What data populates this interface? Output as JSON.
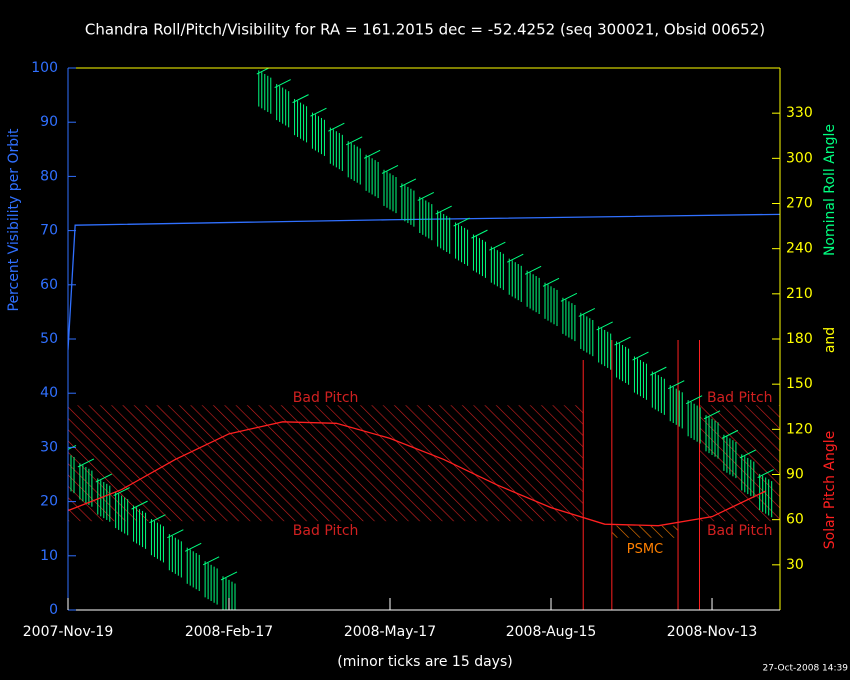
{
  "chart_data": {
    "type": "line",
    "title": "Chandra Roll/Pitch/Visibility for RA = 161.2015 dec = -52.4252 (seq 300021, Obsid 00652)",
    "ylabel": "Percent Visibility per Orbit",
    "y2label_parts": [
      {
        "text": "Nominal Roll Angle",
        "color": "#00ff80"
      },
      {
        "text": "and",
        "color": "#ffff00"
      },
      {
        "text": "Solar Pitch Angle",
        "color": "#ff2020"
      }
    ],
    "xlabel": "(minor ticks are 15 days)",
    "timestamp": "27-Oct-2008 14:39",
    "xlim": [
      "2007-11-19",
      "2008-12-21"
    ],
    "xticks": [
      {
        "value": "2007-11-19",
        "label": "2007-Nov-19"
      },
      {
        "value": "2008-02-17",
        "label": "2008-Feb-17"
      },
      {
        "value": "2008-05-17",
        "label": "2008-May-17"
      },
      {
        "value": "2008-08-15",
        "label": "2008-Aug-15"
      },
      {
        "value": "2008-11-13",
        "label": "2008-Nov-13"
      }
    ],
    "ylim": [
      0,
      100
    ],
    "yticks": [
      0,
      10,
      20,
      30,
      40,
      50,
      60,
      70,
      80,
      90,
      100
    ],
    "y2lim": [
      0,
      360
    ],
    "y2ticks": [
      30,
      60,
      90,
      120,
      150,
      180,
      210,
      240,
      270,
      300,
      330
    ],
    "series": [
      {
        "color": "#3070ff",
        "axis": "y",
        "x": [
          "2007-11-19",
          "2007-11-23",
          "2008-05-17",
          "2008-12-21"
        ],
        "values": [
          48,
          71,
          72,
          73
        ]
      },
      {
        "color": "#00ff80",
        "axis": "y2",
        "error": 12,
        "x": [
          "2007-11-19",
          "2007-11-29",
          "2007-12-09",
          "2007-12-19",
          "2007-12-29",
          "2008-01-08",
          "2008-01-18",
          "2008-01-28",
          "2008-02-07",
          "2008-02-17",
          "2008-02-27",
          "2008-03-08",
          "2008-03-18",
          "2008-03-28",
          "2008-04-07",
          "2008-04-17",
          "2008-04-27",
          "2008-05-07",
          "2008-05-17",
          "2008-05-27",
          "2008-06-06",
          "2008-06-16",
          "2008-06-26",
          "2008-07-06",
          "2008-07-16",
          "2008-07-26",
          "2008-08-05",
          "2008-08-15",
          "2008-08-25",
          "2008-09-04",
          "2008-09-14",
          "2008-09-24",
          "2008-10-04",
          "2008-10-14",
          "2008-10-24",
          "2008-11-03",
          "2008-11-13",
          "2008-11-23",
          "2008-12-03",
          "2008-12-13"
        ],
        "values": [
          92,
          83,
          73,
          64,
          55,
          46,
          36,
          27,
          18,
          8,
          null,
          344,
          335,
          325,
          316,
          306,
          297,
          288,
          278,
          269,
          260,
          251,
          243,
          235,
          227,
          219,
          211,
          203,
          193,
          183,
          174,
          164,
          154,
          144,
          135,
          125,
          115,
          102,
          89,
          76
        ]
      },
      {
        "color": "#ff2020",
        "axis": "y2",
        "x": [
          "2007-11-19",
          "2007-12-19",
          "2008-01-18",
          "2008-02-17",
          "2008-03-18",
          "2008-04-17",
          "2008-05-17",
          "2008-06-16",
          "2008-07-16",
          "2008-08-15",
          "2008-09-14",
          "2008-10-14",
          "2008-11-13",
          "2008-12-13"
        ],
        "values": [
          66,
          80,
          100,
          117,
          125,
          124,
          114,
          100,
          83,
          68,
          57,
          56,
          62,
          79
        ]
      }
    ],
    "regions": [
      {
        "label": "Bad Pitch",
        "x": [
          "2007-11-19",
          "2008-09-02"
        ],
        "y2": [
          59,
          136
        ],
        "color": "#d02020"
      },
      {
        "label": "Bad Pitch",
        "x": [
          "2008-11-06",
          "2008-12-21"
        ],
        "y2": [
          59,
          136
        ],
        "color": "#d02020"
      },
      {
        "label": "PSMC",
        "x": [
          "2008-09-18",
          "2008-10-25"
        ],
        "y2": [
          48,
          56
        ],
        "color": "#ff8000"
      }
    ],
    "vlines": {
      "color": "#ff2020",
      "x": [
        "2008-09-02",
        "2008-09-18",
        "2008-10-25",
        "2008-11-06"
      ]
    }
  }
}
